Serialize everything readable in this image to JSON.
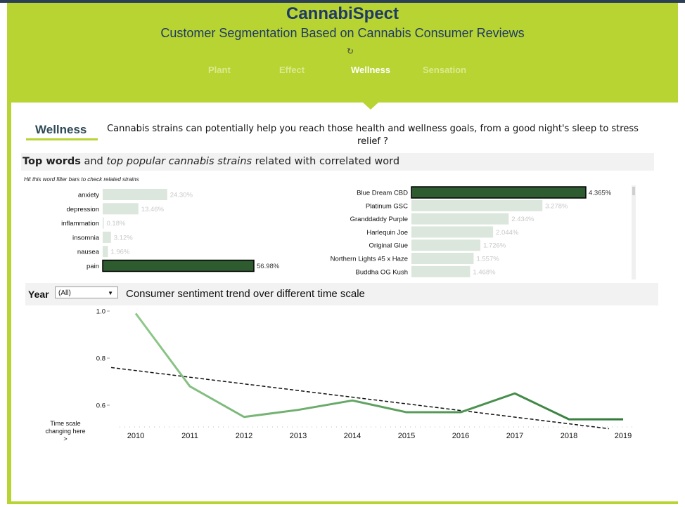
{
  "header": {
    "title": "CannabiSpect",
    "subtitle": "Customer Segmentation Based on Cannabis Consumer Reviews",
    "spinner": "↻",
    "tabs": [
      {
        "label": "Plant",
        "active": false
      },
      {
        "label": "Effect",
        "active": false
      },
      {
        "label": "Wellness",
        "active": true
      },
      {
        "label": "Sensation",
        "active": false
      }
    ]
  },
  "section": {
    "heading": "Wellness",
    "description": "Cannabis strains can potentially help you reach those health and wellness goals, from a good night's sleep to stress relief ?"
  },
  "topwords": {
    "bold": "Top words",
    "and": " and ",
    "italic": "top popular cannabis strains",
    "rest": " related with correlated word",
    "hint": "Hit this word filter bars to check related strains"
  },
  "filters": {
    "year_label": "Year",
    "year_value": "(All)",
    "trend_title": "Consumer sentiment trend over different time scale",
    "time_scale_note": [
      "Time scale",
      "changing here",
      ">"
    ]
  },
  "colors": {
    "frame": "#b7d433",
    "title": "#1f3a66",
    "highlight_bar": "#2e5b30",
    "faded_bar": "#dbe6dc",
    "line_light": "#8fc98a",
    "line_dark": "#2f7a36",
    "trend": "#111111"
  },
  "chart_data": [
    {
      "type": "bar",
      "orientation": "horizontal",
      "categories": [
        "anxiety",
        "depression",
        "inflammation",
        "insomnia",
        "nausea",
        "pain"
      ],
      "values": [
        24.3,
        13.46,
        0.18,
        3.12,
        1.96,
        56.98
      ],
      "labels": [
        "24.30%",
        "13.46%",
        "0.18%",
        "3.12%",
        "1.96%",
        "56.98%"
      ],
      "selected": "pain",
      "unit": "%"
    },
    {
      "type": "bar",
      "orientation": "horizontal",
      "categories": [
        "Blue Dream CBD",
        "Platinum GSC",
        "Granddaddy Purple",
        "Harlequin Joe",
        "Original Glue",
        "Northern Lights #5 x Haze",
        "Buddha OG Kush"
      ],
      "values": [
        4.365,
        3.278,
        2.434,
        2.044,
        1.726,
        1.557,
        1.468
      ],
      "labels": [
        "4.365%",
        "3.278%",
        "2.434%",
        "2.044%",
        "1.726%",
        "1.557%",
        "1.468%"
      ],
      "selected": "Blue Dream CBD",
      "unit": "%"
    },
    {
      "type": "line",
      "x": [
        "2010",
        "2011",
        "2012",
        "2013",
        "2014",
        "2015",
        "2016",
        "2017",
        "2018",
        "2019"
      ],
      "values": [
        0.99,
        0.68,
        0.55,
        0.58,
        0.62,
        0.57,
        0.57,
        0.65,
        0.54,
        0.54
      ],
      "trendline": {
        "start": 0.76,
        "end": 0.5,
        "style": "dashed"
      },
      "yticks": [
        "0.6",
        "0.8",
        "1.0"
      ],
      "ylim": [
        0.5,
        1.0
      ]
    }
  ]
}
